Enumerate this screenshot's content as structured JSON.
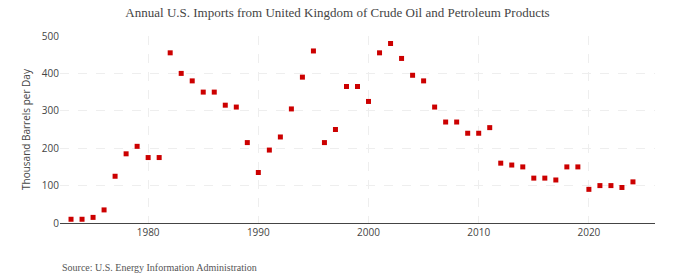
{
  "chart_data": {
    "type": "scatter",
    "title": "Annual U.S. Imports from United Kingdom of Crude Oil and Petroleum Products",
    "ylabel": "Thousand Barrels per Day",
    "annotations": [
      "Source: U.S. Energy Information Administration"
    ],
    "color": "#cc0000",
    "marker": "square",
    "grid": true,
    "xlim": [
      1972,
      2026
    ],
    "ylim": [
      0,
      500
    ],
    "xticks": [
      1980,
      1990,
      2000,
      2010,
      2020
    ],
    "yticks": [
      0,
      100,
      200,
      300,
      400,
      500
    ],
    "x": [
      1973,
      1974,
      1975,
      1976,
      1977,
      1978,
      1979,
      1980,
      1981,
      1982,
      1983,
      1984,
      1985,
      1986,
      1987,
      1988,
      1989,
      1990,
      1991,
      1992,
      1993,
      1994,
      1995,
      1996,
      1997,
      1998,
      1999,
      2000,
      2001,
      2002,
      2003,
      2004,
      2005,
      2006,
      2007,
      2008,
      2009,
      2010,
      2011,
      2012,
      2013,
      2014,
      2015,
      2016,
      2017,
      2018,
      2019,
      2020,
      2021,
      2022,
      2023,
      2024
    ],
    "values": [
      10,
      10,
      15,
      35,
      125,
      185,
      205,
      175,
      175,
      455,
      400,
      380,
      350,
      350,
      315,
      310,
      215,
      135,
      195,
      230,
      305,
      390,
      460,
      215,
      250,
      365,
      365,
      325,
      455,
      480,
      440,
      395,
      380,
      310,
      270,
      270,
      240,
      240,
      255,
      160,
      155,
      150,
      120,
      120,
      115,
      150,
      150,
      90,
      100,
      100,
      95,
      110
    ]
  }
}
